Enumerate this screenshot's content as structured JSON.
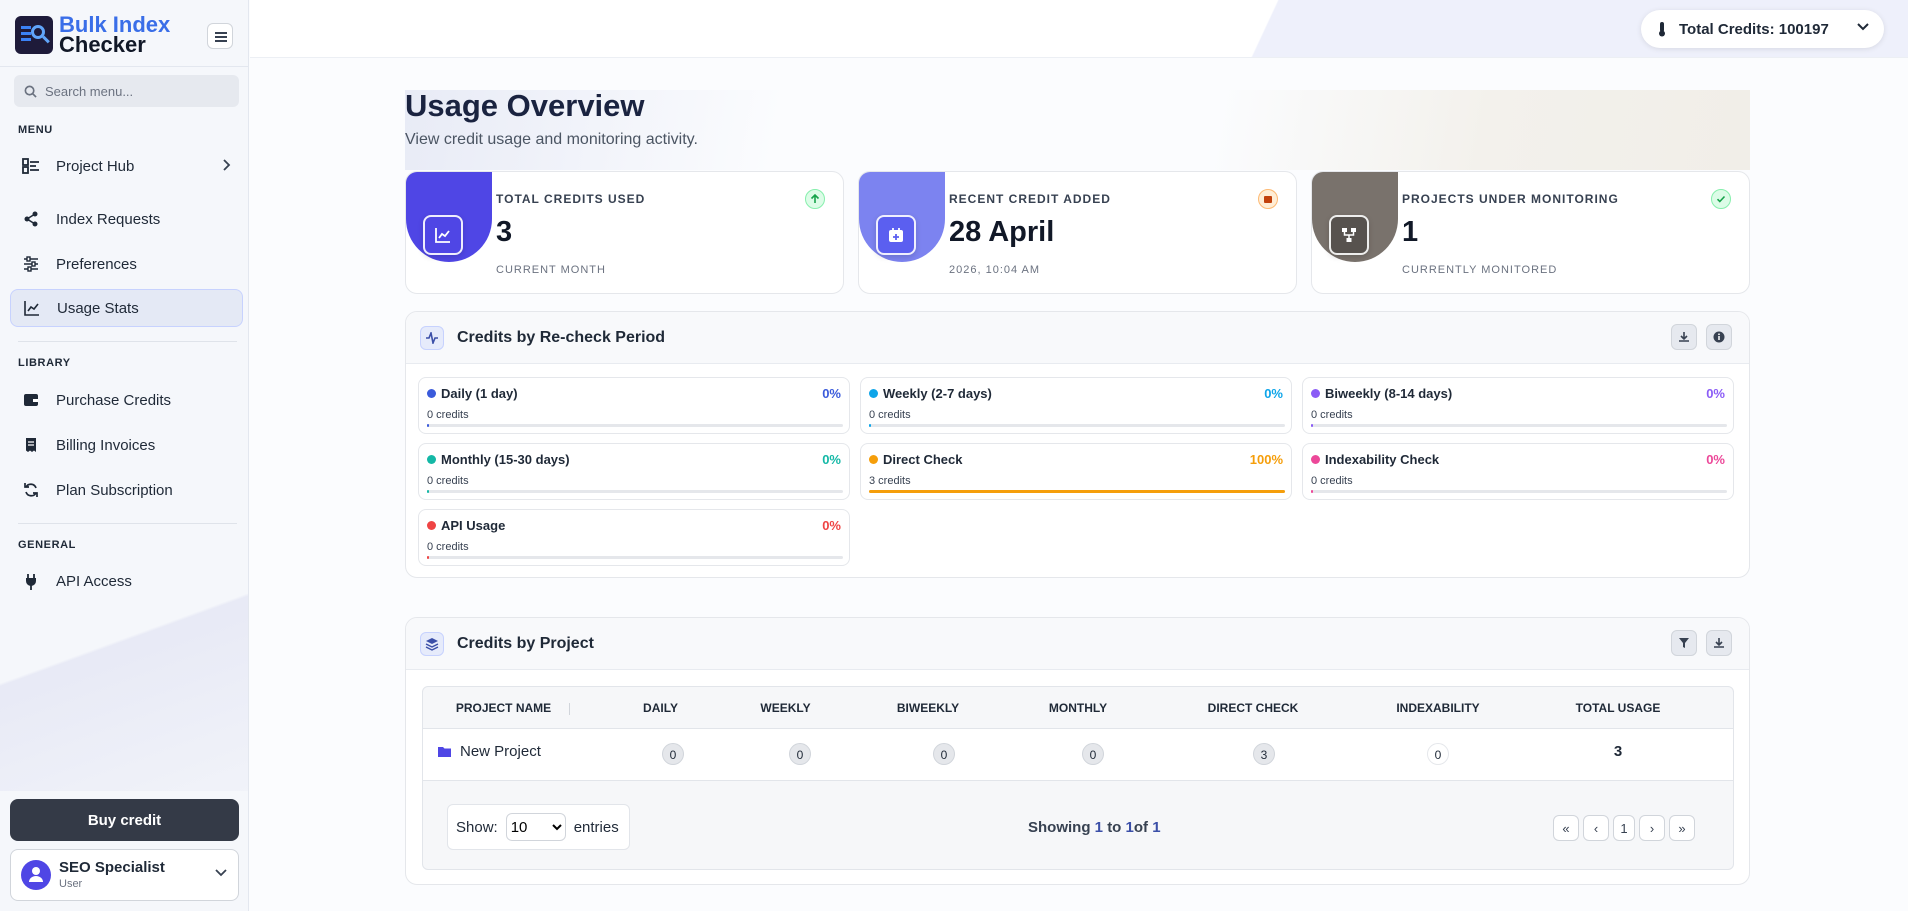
{
  "brand": {
    "line1": "Bulk Index",
    "line2": "Checker"
  },
  "sidebar": {
    "search_placeholder": "Search menu...",
    "sections": {
      "menu": "MENU",
      "library": "LIBRARY",
      "general": "GENERAL"
    },
    "items": {
      "project_hub": "Project Hub",
      "index_requests": "Index Requests",
      "preferences": "Preferences",
      "usage_stats": "Usage Stats",
      "purchase_credits": "Purchase Credits",
      "billing_invoices": "Billing Invoices",
      "plan_subscription": "Plan Subscription",
      "api_access": "API Access"
    },
    "buy_label": "Buy credit",
    "user": {
      "name": "SEO Specialist",
      "role": "User"
    }
  },
  "header": {
    "credits_label": "Total Credits: 100197"
  },
  "page": {
    "title": "Usage Overview",
    "subtitle": "View credit usage and monitoring activity."
  },
  "stats": [
    {
      "label": "TOTAL CREDITS USED",
      "value": "3",
      "sub": "CURRENT MONTH",
      "color": "#4f46e5"
    },
    {
      "label": "RECENT CREDIT ADDED",
      "value": "28 April",
      "sub": "2026, 10:04 AM",
      "color": "#7c83f0"
    },
    {
      "label": "PROJECTS UNDER MONITORING",
      "value": "1",
      "sub": "CURRENTLY MONITORED",
      "color": "#6b6560"
    }
  ],
  "periods_panel": {
    "title": "Credits by Re-check Period",
    "items": [
      {
        "name": "Daily (1 day)",
        "pct": "0%",
        "credits": "0 credits",
        "fraction": 0,
        "color": "#3b5bdb"
      },
      {
        "name": "Weekly (2-7 days)",
        "pct": "0%",
        "credits": "0 credits",
        "fraction": 0,
        "color": "#0ea5e9"
      },
      {
        "name": "Biweekly (8-14 days)",
        "pct": "0%",
        "credits": "0 credits",
        "fraction": 0,
        "color": "#8b5cf6"
      },
      {
        "name": "Monthly (15-30 days)",
        "pct": "0%",
        "credits": "0 credits",
        "fraction": 0,
        "color": "#14b8a6"
      },
      {
        "name": "Direct Check",
        "pct": "100%",
        "credits": "3 credits",
        "fraction": 1,
        "color": "#f59e0b"
      },
      {
        "name": "Indexability Check",
        "pct": "0%",
        "credits": "0 credits",
        "fraction": 0,
        "color": "#ec4899"
      },
      {
        "name": "API Usage",
        "pct": "0%",
        "credits": "0 credits",
        "fraction": 0,
        "color": "#ef4444"
      }
    ]
  },
  "projects_panel": {
    "title": "Credits by Project",
    "columns": [
      "PROJECT NAME",
      "DAILY",
      "WEEKLY",
      "BIWEEKLY",
      "MONTHLY",
      "DIRECT CHECK",
      "INDEXABILITY",
      "TOTAL USAGE"
    ],
    "rows": [
      {
        "name": "New Project",
        "daily": "0",
        "weekly": "0",
        "biweekly": "0",
        "monthly": "0",
        "direct": "3",
        "indexability": "0",
        "total": "3"
      }
    ],
    "show_label": "Show:",
    "entries_label": "entries",
    "page_size": "10",
    "showing": {
      "prefix": "Showing",
      "from": "1",
      "to_word": "to",
      "to": "1",
      "of_word": "of",
      "total": "1"
    },
    "pagination": {
      "first": "«",
      "prev": "‹",
      "current": "1",
      "next": "›",
      "last": "»"
    }
  }
}
